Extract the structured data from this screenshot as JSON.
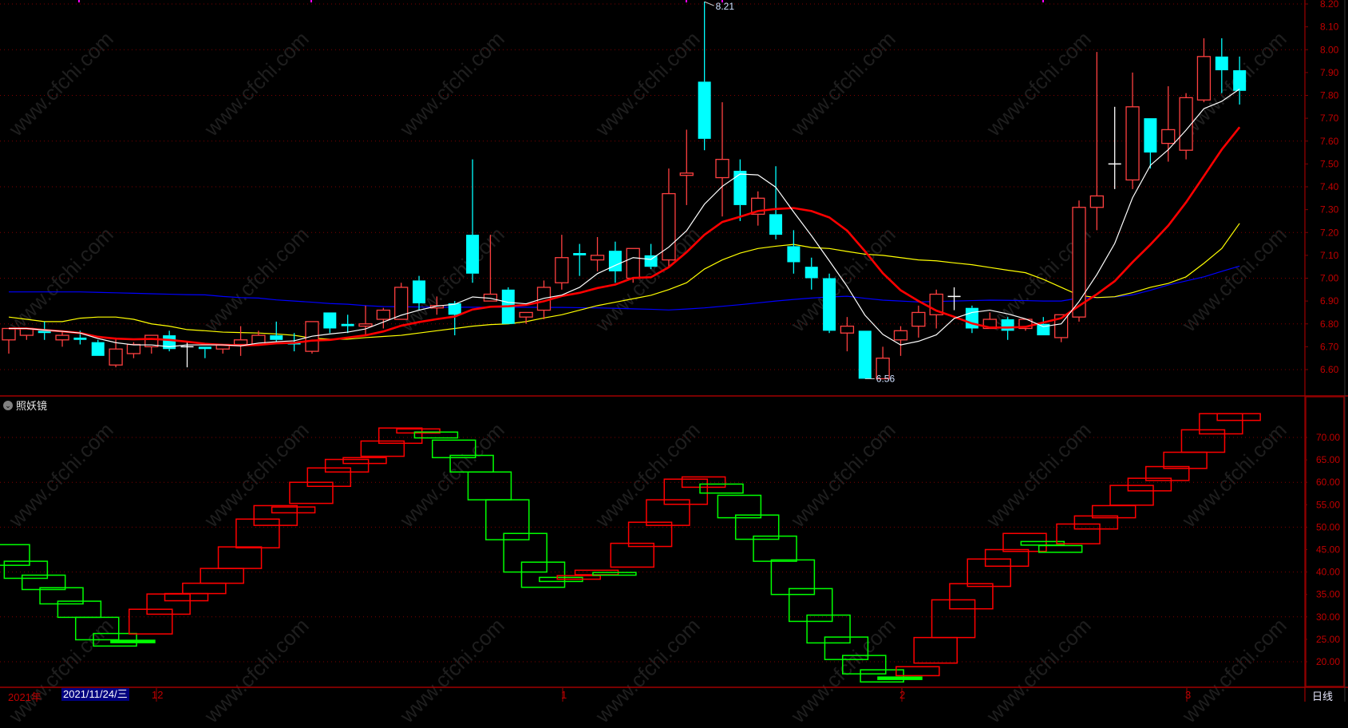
{
  "watermark": "www.cfchi.com",
  "indicator_panel": {
    "title": "照妖镜",
    "collapse_icon": "chevron-down-circle-icon"
  },
  "time_axis": {
    "year_label": "2021年",
    "cursor_date": "2021/11/24/三",
    "month_labels": [
      "12",
      "1",
      "2",
      "3"
    ],
    "period": "日线"
  },
  "chart_data": [
    {
      "type": "candlestick",
      "colors": {
        "up": "#ff4040",
        "down": "#00ffff",
        "flat": "#ffffff",
        "ma5": "#ffffff",
        "ma10": "#ff0000",
        "ma20": "#ffff00",
        "ma60": "#0000ff",
        "grid": "#800000",
        "axis_text": "#c00000"
      },
      "ylim": [
        6.55,
        8.22
      ],
      "yticks": [
        "8.20",
        "8.10",
        "8.00",
        "7.90",
        "7.80",
        "7.70",
        "7.60",
        "7.50",
        "7.40",
        "7.30",
        "7.20",
        "7.10",
        "7.00",
        "6.90",
        "6.80",
        "6.70",
        "6.60"
      ],
      "grid": "dotted",
      "annotations": {
        "high": "8.21",
        "low": "6.56"
      },
      "ohlc_fields": [
        "open",
        "high",
        "low",
        "close"
      ],
      "ohlc": [
        [
          6.73,
          6.78,
          6.67,
          6.78
        ],
        [
          6.75,
          6.78,
          6.73,
          6.78
        ],
        [
          6.77,
          6.81,
          6.73,
          6.76
        ],
        [
          6.73,
          6.77,
          6.7,
          6.75
        ],
        [
          6.74,
          6.77,
          6.71,
          6.73
        ],
        [
          6.72,
          6.73,
          6.66,
          6.66
        ],
        [
          6.62,
          6.74,
          6.61,
          6.69
        ],
        [
          6.67,
          6.72,
          6.65,
          6.71
        ],
        [
          6.7,
          6.75,
          6.67,
          6.75
        ],
        [
          6.75,
          6.77,
          6.68,
          6.69
        ],
        [
          6.7,
          6.72,
          6.61,
          6.7
        ],
        [
          6.7,
          6.7,
          6.65,
          6.69
        ],
        [
          6.69,
          6.71,
          6.67,
          6.71
        ],
        [
          6.71,
          6.79,
          6.66,
          6.73
        ],
        [
          6.71,
          6.77,
          6.71,
          6.75
        ],
        [
          6.75,
          6.81,
          6.72,
          6.73
        ],
        [
          6.72,
          6.76,
          6.68,
          6.71
        ],
        [
          6.68,
          6.81,
          6.67,
          6.81
        ],
        [
          6.85,
          6.85,
          6.76,
          6.78
        ],
        [
          6.8,
          6.84,
          6.76,
          6.79
        ],
        [
          6.79,
          6.88,
          6.75,
          6.8
        ],
        [
          6.82,
          6.87,
          6.78,
          6.86
        ],
        [
          6.82,
          6.98,
          6.82,
          6.96
        ],
        [
          6.99,
          7.01,
          6.86,
          6.89
        ],
        [
          6.87,
          6.92,
          6.84,
          6.88
        ],
        [
          6.89,
          6.9,
          6.75,
          6.84
        ],
        [
          7.19,
          7.52,
          6.98,
          7.02
        ],
        [
          6.9,
          7.19,
          6.9,
          6.93
        ],
        [
          6.95,
          6.96,
          6.8,
          6.8
        ],
        [
          6.83,
          6.85,
          6.8,
          6.85
        ],
        [
          6.86,
          6.99,
          6.82,
          6.96
        ],
        [
          6.98,
          7.19,
          6.95,
          7.09
        ],
        [
          7.11,
          7.15,
          7.01,
          7.1
        ],
        [
          7.08,
          7.18,
          7.03,
          7.1
        ],
        [
          7.12,
          7.16,
          6.98,
          7.03
        ],
        [
          7.0,
          7.13,
          6.98,
          7.13
        ],
        [
          7.1,
          7.15,
          7.04,
          7.05
        ],
        [
          7.08,
          7.48,
          7.05,
          7.37
        ],
        [
          7.45,
          7.65,
          7.32,
          7.46
        ],
        [
          7.86,
          8.21,
          7.56,
          7.61
        ],
        [
          7.44,
          7.77,
          7.27,
          7.52
        ],
        [
          7.47,
          7.52,
          7.25,
          7.32
        ],
        [
          7.28,
          7.38,
          7.23,
          7.35
        ],
        [
          7.28,
          7.49,
          7.17,
          7.19
        ],
        [
          7.14,
          7.21,
          7.02,
          7.07
        ],
        [
          7.05,
          7.09,
          6.95,
          7.0
        ],
        [
          7.0,
          7.02,
          6.76,
          6.77
        ],
        [
          6.76,
          6.83,
          6.68,
          6.79
        ],
        [
          6.77,
          6.77,
          6.56,
          6.56
        ],
        [
          6.56,
          6.7,
          6.56,
          6.65
        ],
        [
          6.73,
          6.79,
          6.66,
          6.77
        ],
        [
          6.79,
          6.88,
          6.74,
          6.85
        ],
        [
          6.84,
          6.95,
          6.78,
          6.93
        ],
        [
          6.92,
          6.96,
          6.86,
          6.92
        ],
        [
          6.87,
          6.88,
          6.76,
          6.78
        ],
        [
          6.78,
          6.85,
          6.78,
          6.82
        ],
        [
          6.82,
          6.83,
          6.73,
          6.77
        ],
        [
          6.78,
          6.82,
          6.77,
          6.82
        ],
        [
          6.8,
          6.83,
          6.75,
          6.75
        ],
        [
          6.74,
          6.84,
          6.72,
          6.84
        ],
        [
          6.83,
          7.34,
          6.81,
          7.31
        ],
        [
          7.31,
          7.99,
          7.21,
          7.36
        ],
        [
          7.5,
          7.75,
          7.39,
          7.5
        ],
        [
          7.43,
          7.9,
          7.39,
          7.75
        ],
        [
          7.7,
          7.7,
          7.48,
          7.55
        ],
        [
          7.59,
          7.84,
          7.51,
          7.65
        ],
        [
          7.56,
          7.81,
          7.52,
          7.79
        ],
        [
          7.78,
          8.05,
          7.77,
          7.97
        ],
        [
          7.97,
          8.05,
          7.81,
          7.91
        ],
        [
          7.91,
          7.97,
          7.76,
          7.82
        ]
      ],
      "ma20": [
        6.83,
        6.82,
        6.81,
        6.81,
        6.825,
        6.83,
        6.83,
        6.82,
        6.8,
        6.79,
        6.775,
        6.77,
        6.764,
        6.762,
        6.76,
        6.756,
        6.75,
        6.738,
        6.733,
        6.733,
        6.74,
        6.745,
        6.75,
        6.76,
        6.77,
        6.78,
        6.79,
        6.797,
        6.8,
        6.81,
        6.826,
        6.84,
        6.86,
        6.88,
        6.895,
        6.91,
        6.925,
        6.95,
        6.98,
        7.04,
        7.08,
        7.11,
        7.13,
        7.14,
        7.148,
        7.134,
        7.13,
        7.117,
        7.105,
        7.1,
        7.09,
        7.08,
        7.076,
        7.067,
        7.059,
        7.047,
        7.035,
        7.024,
        6.995,
        6.96,
        6.925,
        6.915,
        6.919,
        6.937,
        6.96,
        6.977,
        7.006,
        7.065,
        7.13,
        7.24
      ],
      "ma60": [
        6.94,
        6.94,
        6.94,
        6.94,
        6.94,
        6.938,
        6.936,
        6.934,
        6.932,
        6.93,
        6.928,
        6.927,
        6.92,
        6.915,
        6.913,
        6.905,
        6.9,
        6.895,
        6.889,
        6.886,
        6.88,
        6.876,
        6.875,
        6.874,
        6.873,
        6.873,
        6.873,
        6.873,
        6.873,
        6.873,
        6.872,
        6.872,
        6.871,
        6.87,
        6.868,
        6.866,
        6.864,
        6.861,
        6.865,
        6.87,
        6.877,
        6.884,
        6.892,
        6.9,
        6.907,
        6.913,
        6.918,
        6.921,
        6.912,
        6.904,
        6.9,
        6.896,
        6.898,
        6.9,
        6.902,
        6.904,
        6.903,
        6.902,
        6.9,
        6.9,
        6.913,
        6.915,
        6.918,
        6.927,
        6.947,
        6.97,
        6.988,
        7.006,
        7.03,
        7.053
      ]
    },
    {
      "type": "box-step",
      "title": "照妖镜",
      "ylim": [
        13,
        78
      ],
      "yticks": [
        "70.00",
        "65.00",
        "60.00",
        "55.00",
        "50.00",
        "45.00",
        "40.00",
        "35.00",
        "30.00",
        "25.00",
        "20.00"
      ],
      "colors": {
        "up": "#ff0000",
        "down": "#00ff00"
      },
      "box_fields": [
        "top",
        "bottom",
        "direction"
      ],
      "boxes": [
        [
          46.1,
          41.5,
          "down"
        ],
        [
          42.4,
          38.6,
          "down"
        ],
        [
          39.3,
          36.1,
          "down"
        ],
        [
          36.5,
          32.9,
          "down"
        ],
        [
          33.5,
          29.9,
          "down"
        ],
        [
          29.9,
          24.9,
          "down"
        ],
        [
          26.3,
          23.5,
          "down"
        ],
        [
          24.7,
          24.7,
          "down"
        ],
        [
          31.7,
          26.2,
          "up"
        ],
        [
          35.1,
          30.6,
          "up"
        ],
        [
          35.2,
          33.6,
          "up"
        ],
        [
          37.5,
          35.2,
          "up"
        ],
        [
          40.8,
          37.5,
          "up"
        ],
        [
          45.6,
          40.8,
          "up"
        ],
        [
          51.8,
          45.4,
          "up"
        ],
        [
          54.8,
          50.4,
          "up"
        ],
        [
          54.5,
          53.2,
          "up"
        ],
        [
          60.0,
          55.3,
          "up"
        ],
        [
          63.2,
          59.1,
          "up"
        ],
        [
          65.1,
          62.3,
          "up"
        ],
        [
          65.5,
          64.2,
          "up"
        ],
        [
          69.2,
          65.8,
          "up"
        ],
        [
          72.1,
          68.7,
          "up"
        ],
        [
          71.9,
          71.0,
          "up"
        ],
        [
          71.2,
          69.9,
          "down"
        ],
        [
          69.4,
          65.5,
          "down"
        ],
        [
          66.0,
          62.3,
          "down"
        ],
        [
          62.3,
          56.1,
          "down"
        ],
        [
          56.1,
          47.2,
          "down"
        ],
        [
          48.6,
          40.0,
          "down"
        ],
        [
          42.2,
          36.6,
          "down"
        ],
        [
          38.8,
          37.9,
          "down"
        ],
        [
          39.2,
          38.4,
          "up"
        ],
        [
          40.4,
          39.4,
          "up"
        ],
        [
          39.9,
          39.3,
          "down"
        ],
        [
          46.4,
          41.1,
          "up"
        ],
        [
          51.1,
          45.7,
          "up"
        ],
        [
          56.1,
          50.4,
          "up"
        ],
        [
          60.7,
          55.1,
          "up"
        ],
        [
          61.2,
          58.9,
          "up"
        ],
        [
          59.6,
          57.6,
          "down"
        ],
        [
          57.1,
          52.1,
          "down"
        ],
        [
          52.7,
          47.3,
          "down"
        ],
        [
          48.0,
          42.4,
          "down"
        ],
        [
          42.7,
          35.0,
          "down"
        ],
        [
          36.3,
          29.0,
          "down"
        ],
        [
          30.4,
          24.2,
          "down"
        ],
        [
          25.5,
          20.5,
          "down"
        ],
        [
          21.4,
          17.3,
          "down"
        ],
        [
          18.2,
          15.5,
          "down"
        ],
        [
          16.5,
          16.5,
          "down"
        ],
        [
          18.9,
          16.9,
          "up"
        ],
        [
          25.4,
          19.7,
          "up"
        ],
        [
          33.8,
          25.4,
          "up"
        ],
        [
          37.4,
          31.8,
          "up"
        ],
        [
          42.9,
          36.8,
          "up"
        ],
        [
          45.0,
          41.3,
          "up"
        ],
        [
          48.6,
          44.6,
          "up"
        ],
        [
          46.8,
          46.0,
          "down"
        ],
        [
          45.9,
          44.4,
          "down"
        ],
        [
          50.7,
          46.3,
          "up"
        ],
        [
          52.5,
          49.6,
          "up"
        ],
        [
          54.8,
          52.1,
          "up"
        ],
        [
          59.3,
          54.9,
          "up"
        ],
        [
          60.9,
          58.1,
          "up"
        ],
        [
          63.5,
          60.4,
          "up"
        ],
        [
          66.7,
          63.1,
          "up"
        ],
        [
          71.7,
          66.7,
          "up"
        ],
        [
          75.3,
          70.8,
          "up"
        ],
        [
          75.3,
          73.8,
          "up"
        ]
      ]
    }
  ]
}
